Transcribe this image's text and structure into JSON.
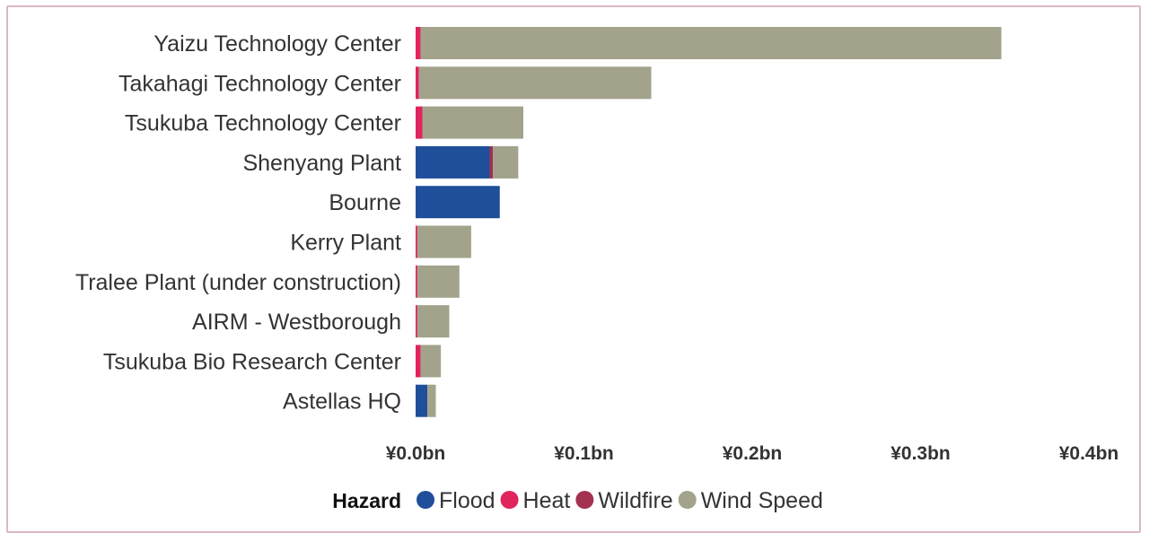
{
  "chart_data": {
    "type": "bar",
    "orientation": "horizontal",
    "stacked": true,
    "categories": [
      "Yaizu Technology Center",
      "Takahagi Technology Center",
      "Tsukuba Technology Center",
      "Shenyang Plant",
      "Bourne",
      "Kerry Plant",
      "Tralee Plant (under construction)",
      "AIRM - Westborough",
      "Tsukuba Bio Research Center",
      "Astellas HQ"
    ],
    "series": [
      {
        "name": "Flood",
        "color": "#1f4e9a",
        "values": [
          0,
          0,
          0,
          0.044,
          0.05,
          0,
          0,
          0,
          0,
          0.007
        ]
      },
      {
        "name": "Heat",
        "color": "#e0245e",
        "values": [
          0.003,
          0.002,
          0.004,
          0,
          0,
          0.001,
          0.001,
          0.001,
          0.003,
          0
        ]
      },
      {
        "name": "Wildfire",
        "color": "#a3314f",
        "values": [
          0,
          0,
          0,
          0.002,
          0,
          0,
          0,
          0,
          0,
          0
        ]
      },
      {
        "name": "Wind Speed",
        "color": "#a2a38a",
        "values": [
          0.345,
          0.138,
          0.06,
          0.015,
          0,
          0.032,
          0.025,
          0.019,
          0.012,
          0.005
        ]
      }
    ],
    "xticks": [
      "¥0.0bn",
      "¥0.1bn",
      "¥0.2bn",
      "¥0.3bn",
      "¥0.4bn"
    ],
    "xtick_values": [
      0,
      0.1,
      0.2,
      0.3,
      0.4
    ],
    "xlim": [
      0,
      0.4
    ],
    "grid": false,
    "legend": {
      "title": "Hazard",
      "placement": "bottom"
    }
  }
}
